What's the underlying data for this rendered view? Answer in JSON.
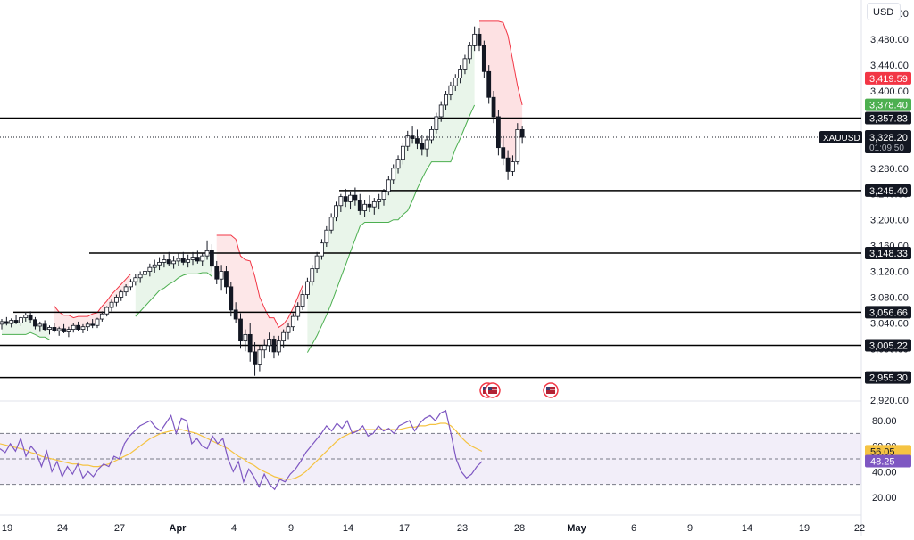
{
  "currency_button": "USD",
  "chart_data": [
    {
      "type": "candlestick",
      "symbol": "XAUUSD",
      "y_axis_ticks": [
        "3,520.00",
        "3,480.00",
        "3,440.00",
        "3,400.00",
        "3,360.00",
        "3,320.00",
        "3,280.00",
        "3,240.00",
        "3,200.00",
        "3,160.00",
        "3,120.00",
        "3,080.00",
        "3,040.00",
        "3,000.00",
        "2,960.00",
        "2,920.00"
      ],
      "ylim": [
        2905,
        3530
      ],
      "x_axis_ticks": [
        "19",
        "24",
        "27",
        "Apr",
        "4",
        "9",
        "14",
        "17",
        "23",
        "28",
        "May",
        "6",
        "9",
        "14",
        "19",
        "22"
      ],
      "price_labels": {
        "supertrend_resistance": "3,419.59",
        "supertrend_support": "3,378.40",
        "last_price": "3,328.20",
        "countdown": "01:09:50"
      },
      "horizontal_levels": [
        {
          "label": "3,357.83",
          "value": 3357.83
        },
        {
          "label": "3,245.40",
          "value": 3245.4
        },
        {
          "label": "3,148.33",
          "value": 3148.33
        },
        {
          "label": "3,056.66",
          "value": 3056.66
        },
        {
          "label": "3,005.22",
          "value": 3005.22
        },
        {
          "label": "2,955.30",
          "value": 2955.3
        }
      ],
      "candles_ohlc": [
        [
          3038,
          3046,
          3030,
          3042
        ],
        [
          3042,
          3049,
          3036,
          3039
        ],
        [
          3039,
          3047,
          3033,
          3044
        ],
        [
          3044,
          3052,
          3038,
          3040
        ],
        [
          3040,
          3050,
          3035,
          3048
        ],
        [
          3048,
          3057,
          3042,
          3052
        ],
        [
          3052,
          3058,
          3040,
          3045
        ],
        [
          3045,
          3049,
          3030,
          3035
        ],
        [
          3035,
          3042,
          3026,
          3038
        ],
        [
          3038,
          3044,
          3028,
          3030
        ],
        [
          3030,
          3036,
          3022,
          3033
        ],
        [
          3033,
          3040,
          3025,
          3028
        ],
        [
          3028,
          3034,
          3020,
          3031
        ],
        [
          3031,
          3038,
          3024,
          3026
        ],
        [
          3026,
          3034,
          3018,
          3030
        ],
        [
          3030,
          3040,
          3025,
          3036
        ],
        [
          3036,
          3042,
          3028,
          3030
        ],
        [
          3030,
          3038,
          3024,
          3034
        ],
        [
          3034,
          3042,
          3028,
          3038
        ],
        [
          3038,
          3046,
          3032,
          3036
        ],
        [
          3036,
          3048,
          3032,
          3046
        ],
        [
          3046,
          3058,
          3042,
          3054
        ],
        [
          3054,
          3066,
          3050,
          3064
        ],
        [
          3064,
          3076,
          3058,
          3072
        ],
        [
          3072,
          3084,
          3066,
          3080
        ],
        [
          3080,
          3092,
          3074,
          3088
        ],
        [
          3088,
          3100,
          3082,
          3096
        ],
        [
          3096,
          3108,
          3090,
          3104
        ],
        [
          3104,
          3116,
          3098,
          3110
        ],
        [
          3110,
          3120,
          3102,
          3115
        ],
        [
          3115,
          3126,
          3108,
          3120
        ],
        [
          3120,
          3132,
          3112,
          3126
        ],
        [
          3126,
          3138,
          3118,
          3130
        ],
        [
          3130,
          3142,
          3122,
          3134
        ],
        [
          3134,
          3146,
          3126,
          3138
        ],
        [
          3138,
          3150,
          3128,
          3132
        ],
        [
          3132,
          3144,
          3124,
          3136
        ],
        [
          3136,
          3148,
          3128,
          3140
        ],
        [
          3140,
          3150,
          3130,
          3134
        ],
        [
          3134,
          3146,
          3126,
          3138
        ],
        [
          3138,
          3150,
          3130,
          3142
        ],
        [
          3142,
          3152,
          3132,
          3136
        ],
        [
          3136,
          3148,
          3128,
          3144
        ],
        [
          3144,
          3168,
          3138,
          3152
        ],
        [
          3152,
          3162,
          3120,
          3128
        ],
        [
          3128,
          3136,
          3100,
          3108
        ],
        [
          3108,
          3130,
          3090,
          3120
        ],
        [
          3120,
          3128,
          3085,
          3096
        ],
        [
          3096,
          3104,
          3050,
          3060
        ],
        [
          3060,
          3072,
          3040,
          3046
        ],
        [
          3046,
          3055,
          3000,
          3012
        ],
        [
          3012,
          3030,
          2996,
          3022
        ],
        [
          3022,
          3040,
          2980,
          2995
        ],
        [
          2995,
          3010,
          2958,
          2975
        ],
        [
          2975,
          3005,
          2965,
          2998
        ],
        [
          2998,
          3015,
          2985,
          3005
        ],
        [
          3005,
          3025,
          2995,
          3015
        ],
        [
          3015,
          3020,
          2985,
          2995
        ],
        [
          2995,
          3020,
          2990,
          3012
        ],
        [
          3012,
          3030,
          3002,
          3025
        ],
        [
          3025,
          3040,
          3015,
          3034
        ],
        [
          3034,
          3055,
          3028,
          3050
        ],
        [
          3050,
          3072,
          3044,
          3066
        ],
        [
          3066,
          3090,
          3060,
          3084
        ],
        [
          3084,
          3110,
          3078,
          3104
        ],
        [
          3104,
          3130,
          3098,
          3124
        ],
        [
          3124,
          3150,
          3118,
          3144
        ],
        [
          3144,
          3170,
          3138,
          3164
        ],
        [
          3164,
          3190,
          3158,
          3184
        ],
        [
          3184,
          3210,
          3178,
          3204
        ],
        [
          3204,
          3228,
          3198,
          3222
        ],
        [
          3222,
          3240,
          3212,
          3236
        ],
        [
          3236,
          3248,
          3220,
          3228
        ],
        [
          3228,
          3244,
          3216,
          3238
        ],
        [
          3238,
          3250,
          3222,
          3230
        ],
        [
          3230,
          3240,
          3208,
          3214
        ],
        [
          3214,
          3230,
          3204,
          3224
        ],
        [
          3224,
          3238,
          3212,
          3220
        ],
        [
          3220,
          3234,
          3208,
          3228
        ],
        [
          3228,
          3240,
          3216,
          3232
        ],
        [
          3232,
          3248,
          3222,
          3244
        ],
        [
          3244,
          3268,
          3238,
          3262
        ],
        [
          3262,
          3286,
          3256,
          3280
        ],
        [
          3280,
          3300,
          3272,
          3294
        ],
        [
          3294,
          3320,
          3286,
          3314
        ],
        [
          3314,
          3338,
          3306,
          3330
        ],
        [
          3330,
          3346,
          3318,
          3326
        ],
        [
          3326,
          3340,
          3310,
          3318
        ],
        [
          3318,
          3332,
          3300,
          3310
        ],
        [
          3310,
          3330,
          3298,
          3324
        ],
        [
          3324,
          3346,
          3318,
          3340
        ],
        [
          3340,
          3366,
          3334,
          3360
        ],
        [
          3360,
          3384,
          3352,
          3378
        ],
        [
          3378,
          3400,
          3370,
          3394
        ],
        [
          3394,
          3414,
          3386,
          3408
        ],
        [
          3408,
          3426,
          3400,
          3420
        ],
        [
          3420,
          3440,
          3412,
          3434
        ],
        [
          3434,
          3456,
          3426,
          3450
        ],
        [
          3450,
          3476,
          3442,
          3470
        ],
        [
          3470,
          3500,
          3462,
          3488
        ],
        [
          3488,
          3498,
          3462,
          3470
        ],
        [
          3470,
          3478,
          3420,
          3430
        ],
        [
          3430,
          3440,
          3380,
          3390
        ],
        [
          3390,
          3400,
          3350,
          3360
        ],
        [
          3360,
          3370,
          3300,
          3312
        ],
        [
          3312,
          3330,
          3285,
          3296
        ],
        [
          3296,
          3308,
          3262,
          3275
        ],
        [
          3275,
          3300,
          3268,
          3290
        ],
        [
          3290,
          3350,
          3286,
          3340
        ],
        [
          3340,
          3346,
          3318,
          3328
        ]
      ],
      "rsi": {
        "type": "line",
        "levels": [
          70,
          50,
          30
        ],
        "ylim": [
          15,
          92
        ],
        "y_axis_ticks": [
          "80.00",
          "60.00",
          "40.00",
          "20.00"
        ],
        "rsi_value_label": "48.25",
        "rsi_ma_label": "56.05",
        "rsi_values": [
          58,
          55,
          62,
          56,
          66,
          52,
          60,
          55,
          44,
          56,
          40,
          48,
          36,
          44,
          38,
          46,
          35,
          40,
          36,
          42,
          46,
          44,
          52,
          50,
          62,
          68,
          72,
          76,
          78,
          80,
          75,
          72,
          78,
          84,
          70,
          82,
          80,
          62,
          66,
          60,
          58,
          68,
          62,
          66,
          50,
          40,
          48,
          32,
          42,
          36,
          28,
          38,
          30,
          26,
          34,
          32,
          38,
          42,
          48,
          55,
          60,
          65,
          70,
          76,
          72,
          78,
          74,
          80,
          70,
          72,
          76,
          68,
          70,
          76,
          72,
          74,
          70,
          76,
          78,
          80,
          72,
          78,
          82,
          84,
          80,
          86,
          88,
          70,
          50,
          40,
          35,
          38,
          44,
          48
        ],
        "rsi_ma_values": [
          62,
          61,
          60,
          59,
          58,
          57,
          55,
          54,
          52,
          51,
          50,
          49,
          48,
          47,
          46,
          46,
          45,
          45,
          44,
          44,
          45,
          46,
          48,
          50,
          52,
          54,
          57,
          60,
          63,
          66,
          68,
          70,
          71,
          72,
          73,
          73,
          72,
          71,
          70,
          68,
          66,
          64,
          62,
          60,
          58,
          55,
          52,
          50,
          47,
          45,
          42,
          40,
          38,
          36,
          35,
          34,
          34,
          35,
          37,
          40,
          44,
          48,
          52,
          56,
          60,
          64,
          67,
          69,
          71,
          72,
          73,
          73,
          73,
          73,
          73,
          73,
          73,
          73,
          74,
          75,
          75,
          76,
          76,
          77,
          77,
          78,
          78,
          76,
          72,
          67,
          63,
          60,
          58,
          56
        ]
      },
      "event_markers": [
        "us-flag",
        "us-flag",
        "us-flag"
      ]
    }
  ]
}
